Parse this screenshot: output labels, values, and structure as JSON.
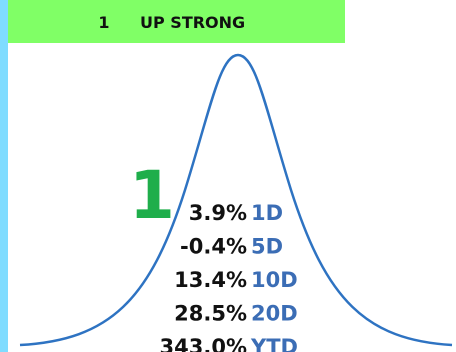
{
  "header": {
    "rank": "1",
    "title": "UP STRONG"
  },
  "big_rank": "1",
  "rows": [
    {
      "value": "3.9%",
      "label": "1D"
    },
    {
      "value": "-0.4%",
      "label": "5D"
    },
    {
      "value": "13.4%",
      "label": "10D"
    },
    {
      "value": "28.5%",
      "label": "20D"
    },
    {
      "value": "343.0%",
      "label": "YTD"
    }
  ]
}
